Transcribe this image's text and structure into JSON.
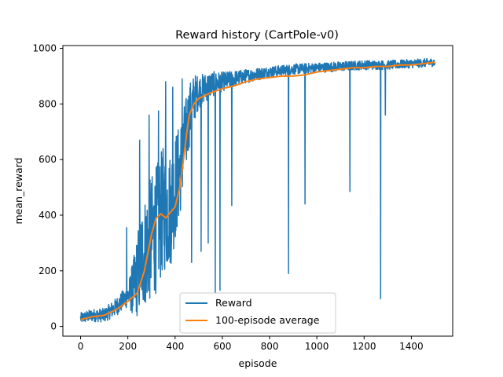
{
  "chart_data": {
    "type": "line",
    "title": "Reward history (CartPole-v0)",
    "xlabel": "episode",
    "ylabel": "mean_reward",
    "xlim": [
      -75,
      1575
    ],
    "ylim": [
      -35,
      1010
    ],
    "xticks": [
      0,
      200,
      400,
      600,
      800,
      1000,
      1200,
      1400
    ],
    "yticks": [
      0,
      200,
      400,
      600,
      800,
      1000
    ],
    "grid": false,
    "legend_position": "lower-center",
    "series": [
      {
        "name": "Reward",
        "color": "#1f77b4",
        "anchors": {
          "x": [
            0,
            50,
            100,
            150,
            200,
            230,
            260,
            290,
            320,
            350,
            380,
            400,
            420,
            440,
            460,
            480,
            500,
            550,
            600,
            700,
            800,
            900,
            1000,
            1100,
            1200,
            1300,
            1400,
            1500
          ],
          "y": [
            30,
            40,
            40,
            70,
            110,
            150,
            250,
            300,
            350,
            420,
            420,
            500,
            560,
            660,
            760,
            820,
            845,
            870,
            880,
            900,
            915,
            925,
            930,
            935,
            940,
            940,
            945,
            950
          ]
        },
        "spread": {
          "x": [
            0,
            100,
            200,
            250,
            300,
            350,
            400,
            450,
            500,
            600,
            700,
            800,
            1000,
            1500
          ],
          "y": [
            20,
            25,
            40,
            180,
            230,
            230,
            200,
            130,
            60,
            35,
            25,
            20,
            18,
            15
          ]
        },
        "dips": [
          {
            "x": 470,
            "y": 230
          },
          {
            "x": 510,
            "y": 270
          },
          {
            "x": 540,
            "y": 300
          },
          {
            "x": 570,
            "y": 120
          },
          {
            "x": 590,
            "y": 130
          },
          {
            "x": 640,
            "y": 435
          },
          {
            "x": 880,
            "y": 190
          },
          {
            "x": 950,
            "y": 440
          },
          {
            "x": 1140,
            "y": 485
          },
          {
            "x": 1270,
            "y": 100
          },
          {
            "x": 1290,
            "y": 760
          }
        ],
        "peaks": [
          {
            "x": 195,
            "y": 355
          },
          {
            "x": 250,
            "y": 670
          },
          {
            "x": 290,
            "y": 760
          },
          {
            "x": 330,
            "y": 775
          },
          {
            "x": 360,
            "y": 880
          },
          {
            "x": 390,
            "y": 860
          },
          {
            "x": 430,
            "y": 890
          }
        ]
      },
      {
        "name": "100-episode average",
        "color": "#ff7f0e",
        "x": [
          0,
          50,
          100,
          150,
          200,
          240,
          270,
          300,
          320,
          340,
          360,
          380,
          400,
          420,
          440,
          450,
          460,
          480,
          500,
          550,
          600,
          650,
          700,
          750,
          800,
          850,
          900,
          950,
          1000,
          1050,
          1100,
          1150,
          1200,
          1250,
          1300,
          1350,
          1400,
          1450,
          1500
        ],
        "y": [
          25,
          35,
          40,
          60,
          90,
          120,
          200,
          330,
          390,
          405,
          390,
          410,
          430,
          500,
          630,
          700,
          760,
          800,
          820,
          840,
          855,
          865,
          880,
          890,
          895,
          900,
          900,
          905,
          915,
          920,
          925,
          930,
          930,
          935,
          935,
          940,
          940,
          945,
          950
        ]
      }
    ]
  }
}
